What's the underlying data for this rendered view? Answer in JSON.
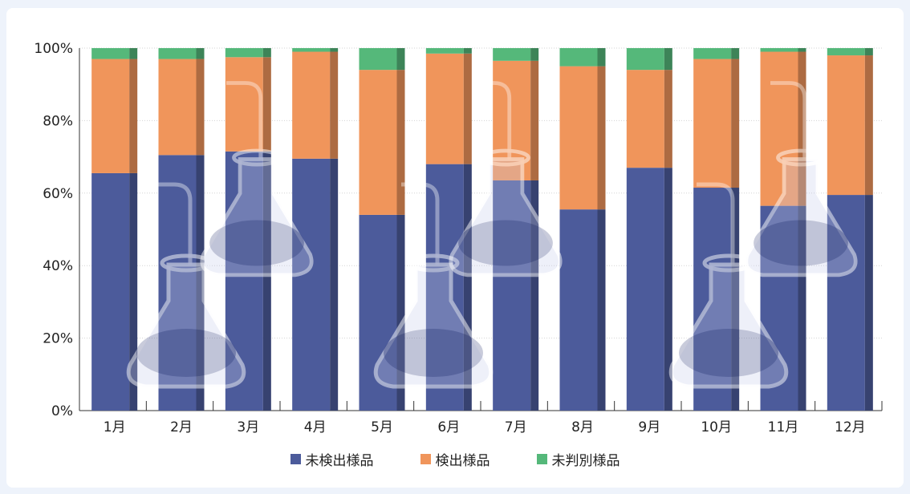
{
  "chart_data": {
    "type": "bar",
    "stacked": "percent",
    "categories": [
      "1月",
      "2月",
      "3月",
      "4月",
      "5月",
      "6月",
      "7月",
      "8月",
      "9月",
      "10月",
      "11月",
      "12月"
    ],
    "series": [
      {
        "name": "未検出様品",
        "color": "#4c5b9b",
        "values": [
          65.5,
          70.5,
          71.5,
          69.5,
          54,
          68,
          63.5,
          55.5,
          67,
          61.5,
          56.5,
          59.5
        ]
      },
      {
        "name": "検出様品",
        "color": "#f0955b",
        "values": [
          31.5,
          26.5,
          26,
          29.5,
          40,
          30.5,
          33,
          39.5,
          27,
          35.5,
          42.5,
          38.5
        ]
      },
      {
        "name": "未判別様品",
        "color": "#55b87a",
        "values": [
          3,
          3,
          2.5,
          1,
          6,
          1.5,
          3.5,
          5,
          6,
          3,
          1,
          2
        ]
      }
    ],
    "yticks": [
      "0%",
      "20%",
      "40%",
      "60%",
      "80%",
      "100%"
    ],
    "ylim": [
      0,
      100
    ],
    "grid": true,
    "legend_position": "bottom"
  },
  "legend": [
    {
      "label": "未検出様品",
      "color": "#4c5b9b"
    },
    {
      "label": "検出様品",
      "color": "#f0955b"
    },
    {
      "label": "未判別様品",
      "color": "#55b87a"
    }
  ]
}
